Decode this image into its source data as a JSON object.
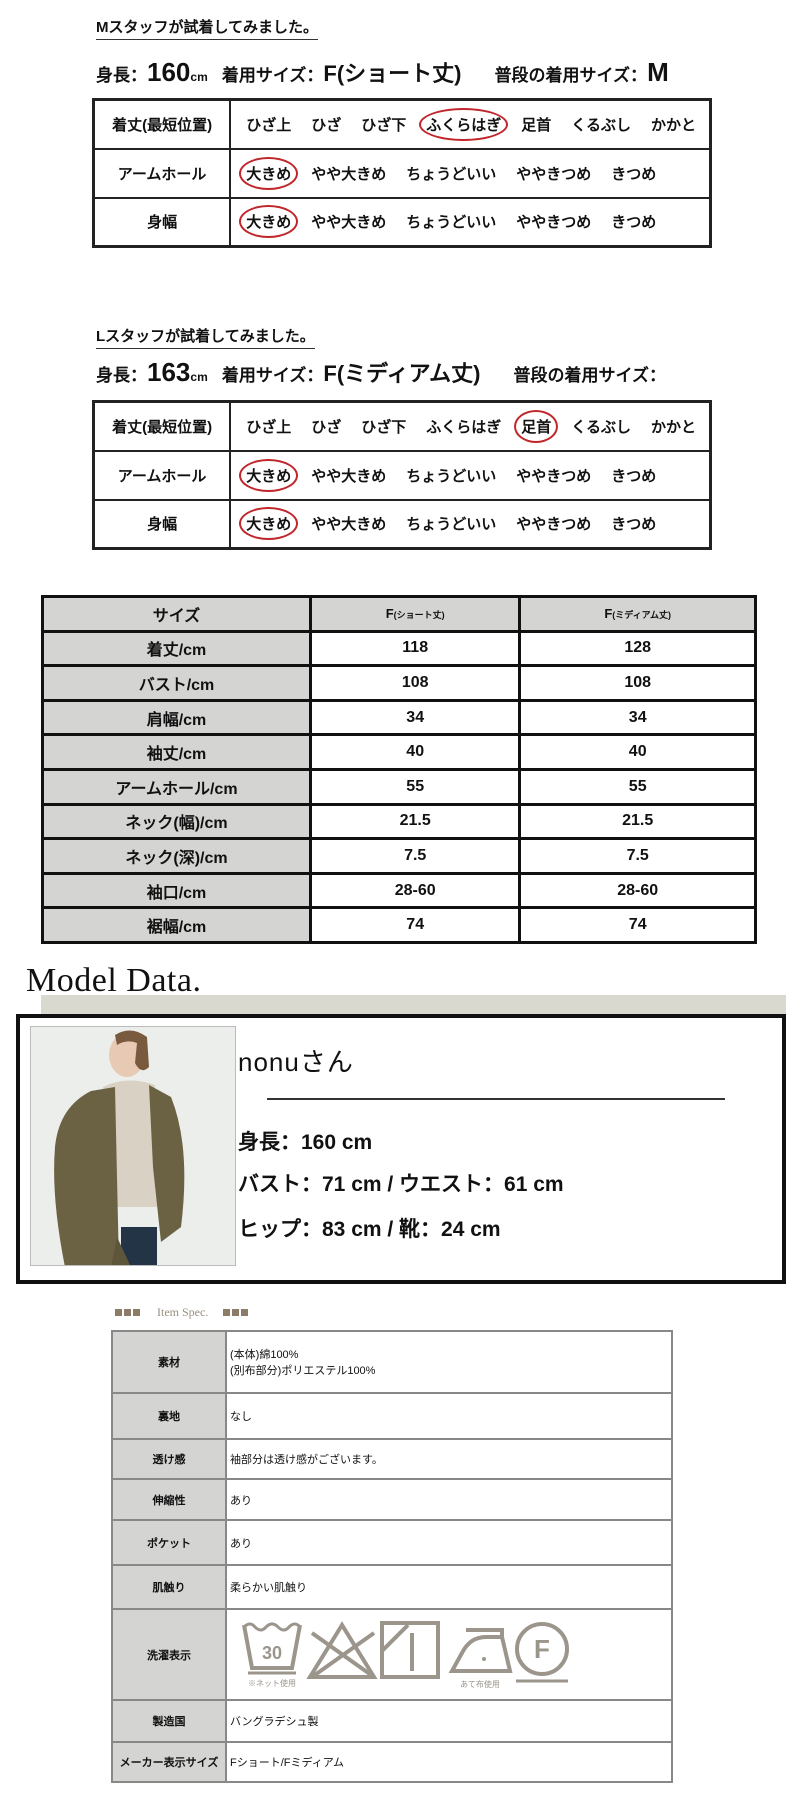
{
  "m_staff": {
    "title": "Mスタッフが試着してみました。",
    "height_label": "身長：",
    "height_value": "160",
    "height_unit": "cm",
    "size_label": "着用サイズ：",
    "size_value": "F(ショート丈)",
    "usual_label": "普段の着用サイズ：",
    "usual_value": "M",
    "rows": [
      {
        "label": "着丈(最短位置)",
        "options": [
          "ひざ上",
          "ひざ",
          "ひざ下",
          "ふくらはぎ",
          "足首",
          "くるぶし",
          "かかと"
        ],
        "selected": 3
      },
      {
        "label": "アームホール",
        "options": [
          "大きめ",
          "やや大きめ",
          "ちょうどいい",
          "ややきつめ",
          "きつめ"
        ],
        "selected": 0
      },
      {
        "label": "身幅",
        "options": [
          "大きめ",
          "やや大きめ",
          "ちょうどいい",
          "ややきつめ",
          "きつめ"
        ],
        "selected": 0
      }
    ]
  },
  "l_staff": {
    "title": "Lスタッフが試着してみました。",
    "height_label": "身長：",
    "height_value": "163",
    "height_unit": "cm",
    "size_label": "着用サイズ：",
    "size_value": "F(ミディアム丈)",
    "usual_label": "普段の着用サイズ：",
    "usual_value": "",
    "rows": [
      {
        "label": "着丈(最短位置)",
        "options": [
          "ひざ上",
          "ひざ",
          "ひざ下",
          "ふくらはぎ",
          "足首",
          "くるぶし",
          "かかと"
        ],
        "selected": 4
      },
      {
        "label": "アームホール",
        "options": [
          "大きめ",
          "やや大きめ",
          "ちょうどいい",
          "ややきつめ",
          "きつめ"
        ],
        "selected": 0
      },
      {
        "label": "身幅",
        "options": [
          "大きめ",
          "やや大きめ",
          "ちょうどいい",
          "ややきつめ",
          "きつめ"
        ],
        "selected": 0
      }
    ]
  },
  "size_table": {
    "header": [
      "サイズ",
      "F",
      "(ショート丈)",
      "F",
      "(ミディアム丈)"
    ],
    "rows": [
      [
        "着丈/cm",
        "118",
        "128"
      ],
      [
        "バスト/cm",
        "108",
        "108"
      ],
      [
        "肩幅/cm",
        "34",
        "34"
      ],
      [
        "袖丈/cm",
        "40",
        "40"
      ],
      [
        "アームホール/cm",
        "55",
        "55"
      ],
      [
        "ネック(幅)/cm",
        "21.5",
        "21.5"
      ],
      [
        "ネック(深)/cm",
        "7.5",
        "7.5"
      ],
      [
        "袖口/cm",
        "28-60",
        "28-60"
      ],
      [
        "裾幅/cm",
        "74",
        "74"
      ]
    ]
  },
  "model": {
    "section_title": "Model Data.",
    "name": "nonuさん",
    "line1": "身長：160 cm",
    "line2": "バスト：71 cm / ウエスト：61 cm",
    "line3": "ヒップ：83 cm / 靴：24 cm"
  },
  "spec": {
    "title": "Item Spec.",
    "rows": [
      {
        "label": "素材",
        "value": "(本体)綿100%",
        "value2": "(別布部分)ポリエステル100%"
      },
      {
        "label": "裏地",
        "value": "なし"
      },
      {
        "label": "透け感",
        "value": "袖部分は透け感がございます。"
      },
      {
        "label": "伸縮性",
        "value": "あり"
      },
      {
        "label": "ポケット",
        "value": "あり"
      },
      {
        "label": "肌触り",
        "value": "柔らかい肌触り"
      },
      {
        "label": "洗濯表示",
        "wash_temp": "30",
        "wash_note": "※ネット使用",
        "iron_note": "あて布使用",
        "dry_letter": "F"
      },
      {
        "label": "製造国",
        "value": "バングラデシュ製"
      },
      {
        "label": "メーカー表示サイズ",
        "value": "Fショート/Fミディアム"
      }
    ],
    "icon_color": "#9b958c"
  },
  "colors": {
    "circle": "#c0262b",
    "header_gray": "#d4d4d2",
    "band": "#d9d9cf",
    "accent_brown": "#8c7b66"
  }
}
